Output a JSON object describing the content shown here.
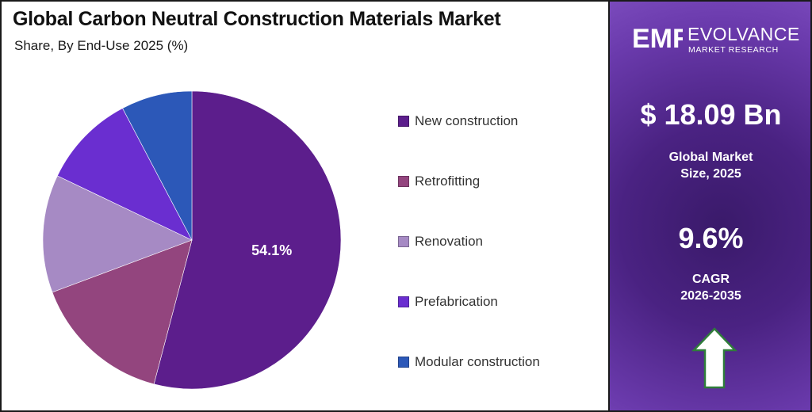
{
  "chart_data": {
    "type": "pie",
    "title": "Global Carbon Neutral Construction Materials Market",
    "subtitle": "Share, By End-Use 2025 (%)",
    "slices": [
      {
        "label": "New construction",
        "value": 54.1,
        "color": "#5c1e8c",
        "data_label": "54.1%"
      },
      {
        "label": "Retrofitting",
        "value": 15.2,
        "color": "#93457e",
        "data_label": ""
      },
      {
        "label": "Renovation",
        "value": 12.8,
        "color": "#a68ac4",
        "data_label": ""
      },
      {
        "label": "Prefabrication",
        "value": 10.2,
        "color": "#6a2ed0",
        "data_label": ""
      },
      {
        "label": "Modular construction",
        "value": 7.7,
        "color": "#2c58b8",
        "data_label": ""
      }
    ],
    "legend_position": "right",
    "start_angle_deg": 0,
    "direction": "clockwise"
  },
  "brand": {
    "mark": "EMR",
    "name": "EVOLVANCE",
    "tagline": "MARKET RESEARCH"
  },
  "stats": {
    "market_size_value": "$ 18.09 Bn",
    "market_size_label_line1": "Global Market",
    "market_size_label_line2": "Size, 2025",
    "cagr_value": "9.6%",
    "cagr_label_line1": "CAGR",
    "cagr_label_line2": "2026-2035"
  },
  "icons": {
    "growth": "up-arrow-icon"
  },
  "colors": {
    "panel_accent": "#4a2282",
    "arrow_fill": "#ffffff",
    "arrow_stroke": "#2f7d3a"
  }
}
